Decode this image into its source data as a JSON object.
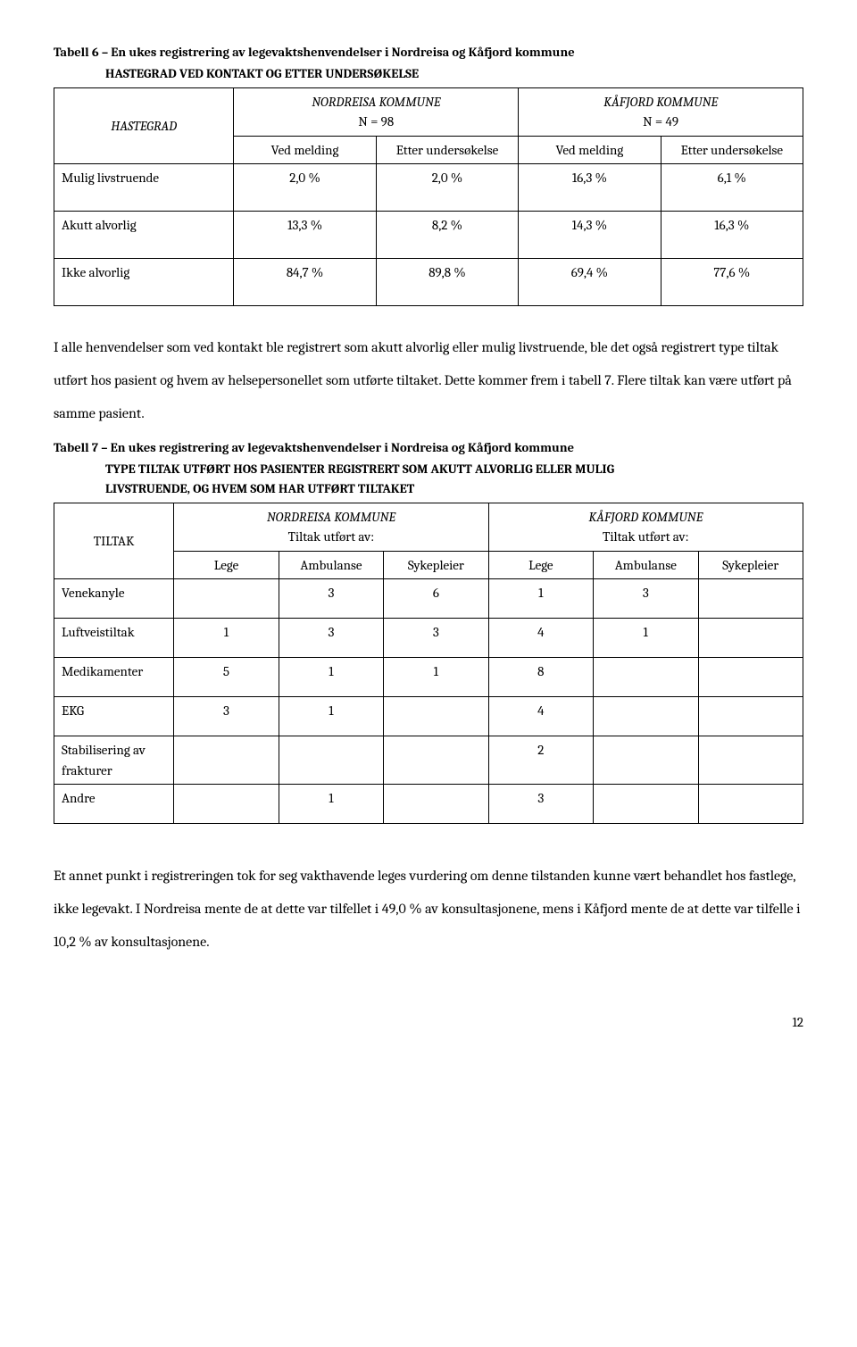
{
  "table6": {
    "title": "Tabell 6 – En ukes registrering av legevaktshenvendelser i Nordreisa og Kåfjord kommune",
    "subtitle": "HASTEGRAD VED KONTAKT OG ETTER UNDERSØKELSE",
    "row_header": "HASTEGRAD",
    "group1_title": "NORDREISA KOMMUNE",
    "group1_n": "N = 98",
    "group2_title": "KÅFJORD KOMMUNE",
    "group2_n": "N = 49",
    "sub1": "Ved melding",
    "sub2": "Etter undersøkelse",
    "sub3": "Ved melding",
    "sub4": "Etter undersøkelse",
    "rows": [
      {
        "label": "Mulig livstruende",
        "v1": "2,0 %",
        "v2": "2,0 %",
        "v3": "16,3 %",
        "v4": "6,1 %"
      },
      {
        "label": "Akutt alvorlig",
        "v1": "13,3 %",
        "v2": "8,2 %",
        "v3": "14,3 %",
        "v4": "16,3 %"
      },
      {
        "label": "Ikke alvorlig",
        "v1": "84,7 %",
        "v2": "89,8 %",
        "v3": "69,4 %",
        "v4": "77,6 %"
      }
    ]
  },
  "para1": "I alle henvendelser som ved kontakt ble registrert som akutt alvorlig eller mulig livstruende, ble det også registrert type tiltak utført hos pasient og hvem av helsepersonellet som utførte tiltaket. Dette kommer frem i tabell 7. Flere tiltak kan være utført på samme pasient.",
  "table7": {
    "title": "Tabell 7 – En ukes registrering av legevaktshenvendelser i Nordreisa og Kåfjord kommune",
    "subtitle1": "TYPE TILTAK UTFØRT HOS PASIENTER REGISTRERT SOM AKUTT ALVORLIG ELLER MULIG",
    "subtitle2": "LIVSTRUENDE, OG HVEM SOM HAR UTFØRT TILTAKET",
    "row_header": "TILTAK",
    "group1_title": "NORDREISA KOMMUNE",
    "group1_sub": "Tiltak utført av:",
    "group2_title": "KÅFJORD KOMMUNE",
    "group2_sub": "Tiltak utført av:",
    "cols": [
      "Lege",
      "Ambulanse",
      "Sykepleier",
      "Lege",
      "Ambulanse",
      "Sykepleier"
    ],
    "rows": [
      {
        "label": "Venekanyle",
        "v": [
          "",
          "3",
          "6",
          "1",
          "3",
          ""
        ]
      },
      {
        "label": "Luftveistiltak",
        "v": [
          "1",
          "3",
          "3",
          "4",
          "1",
          ""
        ]
      },
      {
        "label": "Medikamenter",
        "v": [
          "5",
          "1",
          "1",
          "8",
          "",
          ""
        ]
      },
      {
        "label": "EKG",
        "v": [
          "3",
          "1",
          "",
          "4",
          "",
          ""
        ]
      },
      {
        "label": "Stabilisering av frakturer",
        "v": [
          "",
          "",
          "",
          "2",
          "",
          ""
        ]
      },
      {
        "label": "Andre",
        "v": [
          "",
          "1",
          "",
          "3",
          "",
          ""
        ]
      }
    ]
  },
  "para2": "Et annet punkt i registreringen tok for seg vakthavende leges vurdering om denne tilstanden kunne vært behandlet hos fastlege, ikke legevakt. I Nordreisa mente de at dette var tilfellet i 49,0 % av konsultasjonene, mens i Kåfjord mente de at dette var tilfelle i 10,2 % av konsultasjonene.",
  "page": "12"
}
